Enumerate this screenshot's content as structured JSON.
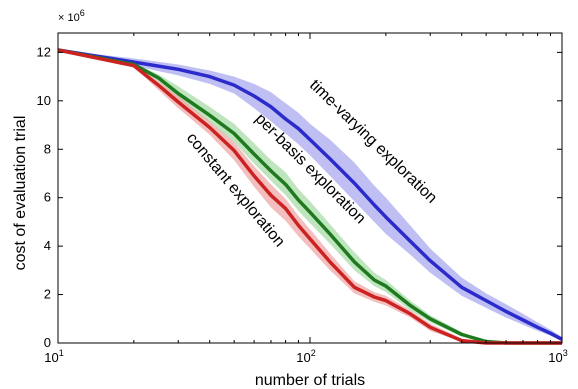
{
  "chart_data": {
    "type": "line",
    "xscale": "log",
    "xlim": [
      10,
      1000
    ],
    "ylim": [
      0,
      12.8
    ],
    "y_multiplier_label": "× 10",
    "y_multiplier_exp": "6",
    "xlabel": "number of trials",
    "ylabel": "cost of evaluation trial",
    "xticks": [
      {
        "base": "10",
        "exp": "1",
        "value": 10
      },
      {
        "base": "10",
        "exp": "2",
        "value": 100
      },
      {
        "base": "10",
        "exp": "3",
        "value": 1000
      }
    ],
    "yticks": [
      {
        "label": "0",
        "value": 0
      },
      {
        "label": "2",
        "value": 2
      },
      {
        "label": "4",
        "value": 4
      },
      {
        "label": "6",
        "value": 6
      },
      {
        "label": "8",
        "value": 8
      },
      {
        "label": "10",
        "value": 10
      },
      {
        "label": "12",
        "value": 12
      }
    ],
    "grid": false,
    "series": [
      {
        "name": "time-varying exploration",
        "color": "#2b2bcc",
        "band_color": "#a9aaf0",
        "x": [
          10,
          20,
          30,
          40,
          50,
          60,
          70,
          80,
          90,
          100,
          120,
          150,
          180,
          200,
          250,
          300,
          400,
          500,
          600,
          700,
          800,
          900,
          1000
        ],
        "y": [
          12.1,
          11.6,
          11.3,
          11.0,
          10.65,
          10.2,
          9.75,
          9.25,
          8.85,
          8.4,
          7.6,
          6.6,
          5.7,
          5.2,
          4.2,
          3.4,
          2.3,
          1.75,
          1.3,
          0.95,
          0.65,
          0.4,
          0.15
        ],
        "upper": [
          12.1,
          11.75,
          11.5,
          11.25,
          11.0,
          10.7,
          10.35,
          9.9,
          9.5,
          9.05,
          8.4,
          7.45,
          6.5,
          6.0,
          4.85,
          3.9,
          2.7,
          2.05,
          1.6,
          1.2,
          0.85,
          0.55,
          0.25
        ],
        "lower": [
          12.1,
          11.45,
          11.05,
          10.7,
          10.3,
          9.7,
          9.15,
          8.65,
          8.2,
          7.75,
          6.9,
          5.85,
          5.0,
          4.5,
          3.65,
          2.9,
          1.95,
          1.45,
          1.05,
          0.75,
          0.5,
          0.3,
          0.1
        ]
      },
      {
        "name": "per-basis exploration",
        "color": "#1f7a1f",
        "band_color": "#a8dca8",
        "x": [
          10,
          20,
          25,
          30,
          40,
          50,
          60,
          70,
          80,
          90,
          100,
          120,
          150,
          180,
          200,
          250,
          300,
          400,
          500,
          600,
          1000
        ],
        "y": [
          12.1,
          11.5,
          10.95,
          10.3,
          9.4,
          8.65,
          7.8,
          7.1,
          6.55,
          5.9,
          5.4,
          4.5,
          3.35,
          2.6,
          2.35,
          1.55,
          1.0,
          0.35,
          0.06,
          0.0,
          0.0
        ],
        "upper": [
          12.1,
          11.55,
          11.1,
          10.6,
          9.75,
          9.05,
          8.25,
          7.55,
          7.05,
          6.35,
          5.85,
          4.9,
          3.75,
          2.9,
          2.6,
          1.75,
          1.15,
          0.45,
          0.1,
          0.02,
          0.0
        ],
        "lower": [
          12.1,
          11.45,
          10.8,
          10.05,
          9.1,
          8.3,
          7.4,
          6.7,
          6.1,
          5.45,
          4.95,
          4.1,
          3.0,
          2.35,
          2.1,
          1.35,
          0.85,
          0.28,
          0.03,
          0.0,
          0.0
        ]
      },
      {
        "name": "constant exploration",
        "color": "#cc2222",
        "band_color": "#f0a8a8",
        "x": [
          10,
          20,
          25,
          30,
          40,
          50,
          60,
          70,
          80,
          90,
          100,
          120,
          150,
          180,
          200,
          250,
          300,
          400,
          500,
          1000
        ],
        "y": [
          12.1,
          11.45,
          10.65,
          9.95,
          8.9,
          7.95,
          6.9,
          6.1,
          5.55,
          4.85,
          4.3,
          3.35,
          2.3,
          1.9,
          1.75,
          1.2,
          0.65,
          0.1,
          0.0,
          0.0
        ],
        "upper": [
          12.1,
          11.5,
          10.8,
          10.2,
          9.15,
          8.3,
          7.3,
          6.55,
          5.95,
          5.25,
          4.7,
          3.7,
          2.55,
          2.1,
          1.95,
          1.35,
          0.8,
          0.18,
          0.02,
          0.0
        ],
        "lower": [
          12.1,
          11.4,
          10.45,
          9.7,
          8.6,
          7.55,
          6.45,
          5.6,
          5.05,
          4.4,
          3.9,
          3.0,
          2.05,
          1.7,
          1.55,
          1.05,
          0.5,
          0.05,
          0.0,
          0.0
        ]
      }
    ]
  }
}
